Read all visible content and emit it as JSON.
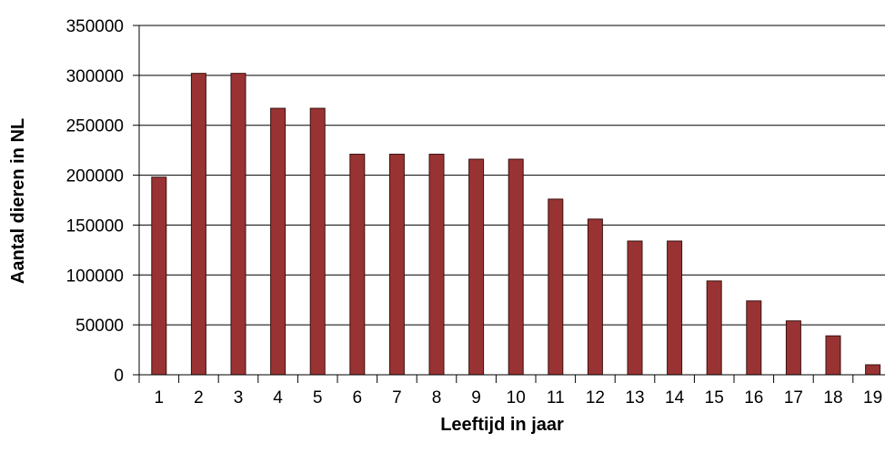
{
  "chart_data": {
    "type": "bar",
    "title": "",
    "xlabel": "Leeftijd in jaar",
    "ylabel": "Aantal dieren in NL",
    "categories": [
      "1",
      "2",
      "3",
      "4",
      "5",
      "6",
      "7",
      "8",
      "9",
      "10",
      "11",
      "12",
      "13",
      "14",
      "15",
      "16",
      "17",
      "18",
      "19"
    ],
    "values": [
      198000,
      302000,
      302000,
      267000,
      267000,
      221000,
      221000,
      221000,
      216000,
      216000,
      176000,
      156000,
      134000,
      134000,
      94000,
      74000,
      54000,
      39000,
      10000
    ],
    "ylim": [
      0,
      350000
    ],
    "yticks": [
      "0",
      "50000",
      "100000",
      "150000",
      "200000",
      "250000",
      "300000",
      "350000"
    ],
    "grid": true,
    "legend": "none",
    "colors": {
      "bar": "#993333",
      "bar_edge": "#3a1010",
      "grid": "#000000",
      "axis": "#000000"
    }
  }
}
